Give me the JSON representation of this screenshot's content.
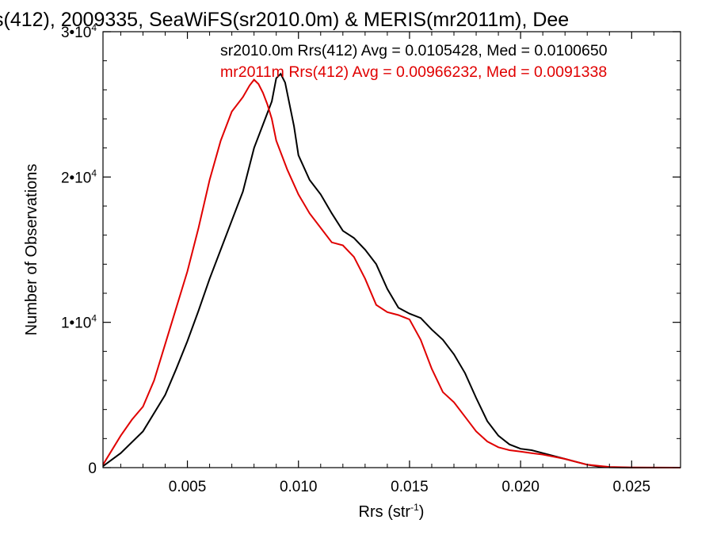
{
  "chart_data": {
    "type": "line",
    "title": "s(412), 2009335, SeaWiFS(sr2010.0m) & MERIS(mr2011m), Dee",
    "xlabel": "Rrs (str",
    "xlabel_sup": "-1",
    "xlabel_end": ")",
    "ylabel": "Number of Observations",
    "xlim": [
      0.0012,
      0.0272
    ],
    "ylim": [
      0,
      30000
    ],
    "x_ticks": [
      {
        "value": 0.005,
        "label": "0.005"
      },
      {
        "value": 0.01,
        "label": "0.010"
      },
      {
        "value": 0.015,
        "label": "0.015"
      },
      {
        "value": 0.02,
        "label": "0.020"
      },
      {
        "value": 0.025,
        "label": "0.025"
      }
    ],
    "y_ticks": [
      {
        "value": 0,
        "label": "0",
        "sup": ""
      },
      {
        "value": 10000,
        "label": "1•10",
        "sup": "4"
      },
      {
        "value": 20000,
        "label": "2•10",
        "sup": "4"
      },
      {
        "value": 30000,
        "label": "3•10",
        "sup": "4"
      }
    ],
    "series": [
      {
        "name": "sr2010.0m",
        "legend_text": "sr2010.0m Rrs(412) Avg = 0.0105428, Med = 0.0100650",
        "color": "#000000",
        "x": [
          0.0012,
          0.002,
          0.003,
          0.004,
          0.0045,
          0.005,
          0.0055,
          0.006,
          0.0065,
          0.007,
          0.0075,
          0.008,
          0.0085,
          0.0088,
          0.009,
          0.0092,
          0.0094,
          0.0096,
          0.0098,
          0.01,
          0.0105,
          0.011,
          0.0115,
          0.012,
          0.0125,
          0.013,
          0.0135,
          0.014,
          0.0145,
          0.015,
          0.0155,
          0.016,
          0.0165,
          0.017,
          0.0175,
          0.018,
          0.0185,
          0.019,
          0.0195,
          0.02,
          0.0205,
          0.021,
          0.0215,
          0.022,
          0.0225,
          0.023,
          0.0235,
          0.024,
          0.025,
          0.026,
          0.0272
        ],
        "values": [
          100,
          1000,
          2500,
          5000,
          6800,
          8700,
          10800,
          13000,
          15000,
          17000,
          19000,
          22000,
          24000,
          25200,
          26800,
          27100,
          26500,
          25000,
          23500,
          21500,
          19800,
          18800,
          17500,
          16300,
          15800,
          15000,
          14000,
          12300,
          11000,
          10600,
          10300,
          9500,
          8800,
          7800,
          6500,
          4800,
          3200,
          2200,
          1600,
          1300,
          1200,
          1000,
          800,
          600,
          400,
          200,
          80,
          20,
          0,
          0,
          0
        ]
      },
      {
        "name": "mr2011m",
        "legend_text": "mr2011m Rrs(412) Avg = 0.00966232, Med = 0.0091338",
        "color": "#e00000",
        "x": [
          0.0012,
          0.002,
          0.0025,
          0.003,
          0.0035,
          0.004,
          0.0045,
          0.005,
          0.0055,
          0.006,
          0.0065,
          0.007,
          0.0075,
          0.0078,
          0.008,
          0.0082,
          0.0084,
          0.0086,
          0.0088,
          0.009,
          0.0095,
          0.01,
          0.0105,
          0.011,
          0.0115,
          0.012,
          0.0125,
          0.013,
          0.0135,
          0.014,
          0.0145,
          0.015,
          0.0155,
          0.016,
          0.0165,
          0.017,
          0.0175,
          0.018,
          0.0185,
          0.019,
          0.0195,
          0.02,
          0.0205,
          0.021,
          0.022,
          0.023,
          0.024,
          0.025,
          0.0272
        ],
        "values": [
          200,
          2200,
          3300,
          4200,
          6000,
          8500,
          11000,
          13500,
          16500,
          19800,
          22500,
          24500,
          25500,
          26300,
          26700,
          26400,
          25800,
          25000,
          24000,
          22500,
          20500,
          18800,
          17500,
          16500,
          15500,
          15300,
          14500,
          13000,
          11200,
          10700,
          10500,
          10200,
          8800,
          6800,
          5200,
          4500,
          3500,
          2500,
          1800,
          1400,
          1200,
          1100,
          1000,
          900,
          600,
          200,
          50,
          10,
          0
        ]
      }
    ]
  }
}
